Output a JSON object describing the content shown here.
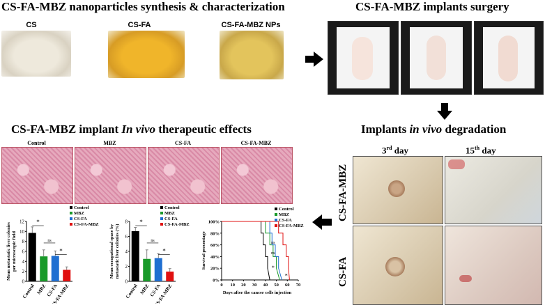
{
  "titles": {
    "synthesis": "CS-FA-MBZ nanoparticles synthesis & characterization",
    "surgery": "CS-FA-MBZ implants surgery",
    "effects_prefix": "CS-FA-MBZ implant ",
    "effects_italic": "In vivo",
    "effects_suffix": " therapeutic effects",
    "degradation_prefix": "Implants ",
    "degradation_italic": "in vivo",
    "degradation_suffix": " degradation"
  },
  "powders": [
    {
      "label": "CS",
      "color": "#e9e3d6"
    },
    {
      "label": "CS-FA",
      "color": "#e7b43a"
    },
    {
      "label": "CS-FA-MBZ NPs",
      "color": "#dcc160"
    }
  ],
  "histology": {
    "panels": [
      "Control",
      "MBZ",
      "CS-FA",
      "CS-FA-MBZ"
    ]
  },
  "degradation": {
    "columns": [
      "3",
      "rd",
      " day",
      "15",
      "th",
      " day"
    ],
    "col1_num": "3",
    "col1_sup": "rd",
    "col1_txt": " day",
    "col2_num": "15",
    "col2_sup": "th",
    "col2_txt": " day",
    "rows": [
      "CS-FA-MBZ",
      "CS-FA"
    ]
  },
  "legend": [
    "Control",
    "MBZ",
    "CS-FA",
    "CS-FA-MBZ"
  ],
  "colors": {
    "Control": "#000000",
    "MBZ": "#1a9a2a",
    "CS-FA": "#1f6fd1",
    "CS-FA-MBZ": "#e01010"
  },
  "chart_data": [
    {
      "type": "bar",
      "ylabel": "Mean metastatic liver colonies per microscopic field",
      "categories": [
        "Control",
        "MBZ",
        "CS-FA",
        "CS-FA-MBZ"
      ],
      "values": [
        9.7,
        5.0,
        5.1,
        2.3
      ],
      "errors": [
        1.2,
        1.3,
        1.0,
        0.6
      ],
      "ylim": [
        0,
        12
      ],
      "yticks": [
        "0",
        "2",
        "4",
        "6",
        "8",
        "10",
        "12"
      ],
      "annotations": [
        "*",
        "ns",
        "*"
      ]
    },
    {
      "type": "bar",
      "ylabel": "Mean occupational space by metastatic liver colonies (%)",
      "categories": [
        "Control",
        "MBZ",
        "CS-FA",
        "CS-FA-MBZ"
      ],
      "values": [
        6.7,
        3.0,
        3.1,
        1.3
      ],
      "errors": [
        0.5,
        1.2,
        0.6,
        0.4
      ],
      "ylim": [
        0,
        8
      ],
      "yticks": [
        "0",
        "2",
        "4",
        "6",
        "8"
      ],
      "annotations": [
        "*",
        "ns",
        "*"
      ]
    },
    {
      "type": "line",
      "title": "",
      "ylabel": "Survival percentage",
      "xlabel": "Days after the cancer cells injection",
      "xlim": [
        0,
        70
      ],
      "ylim": [
        0,
        100
      ],
      "xticks": [
        "0",
        "10",
        "20",
        "30",
        "40",
        "50",
        "60",
        "70"
      ],
      "yticks": [
        "0%",
        "20%",
        "40%",
        "60%",
        "80%",
        "100%"
      ],
      "series": [
        {
          "name": "Control",
          "x": [
            0,
            36,
            36,
            38,
            38,
            40,
            40,
            42,
            42,
            44
          ],
          "y": [
            100,
            100,
            80,
            80,
            60,
            60,
            40,
            40,
            20,
            0
          ]
        },
        {
          "name": "MBZ",
          "x": [
            0,
            40,
            40,
            44,
            44,
            47,
            47,
            50,
            50,
            53
          ],
          "y": [
            100,
            100,
            80,
            80,
            60,
            60,
            40,
            40,
            20,
            0
          ]
        },
        {
          "name": "CS-FA",
          "x": [
            0,
            44,
            44,
            46,
            46,
            49,
            49,
            52,
            52,
            55
          ],
          "y": [
            100,
            100,
            80,
            80,
            60,
            60,
            40,
            40,
            20,
            0
          ]
        },
        {
          "name": "CS-FA-MBZ",
          "x": [
            0,
            52,
            52,
            56,
            56,
            59,
            59,
            61,
            61,
            62
          ],
          "y": [
            100,
            100,
            80,
            80,
            60,
            60,
            40,
            40,
            20,
            0
          ]
        }
      ],
      "annotations": [
        "ns",
        "ns",
        "*",
        "*"
      ]
    }
  ]
}
